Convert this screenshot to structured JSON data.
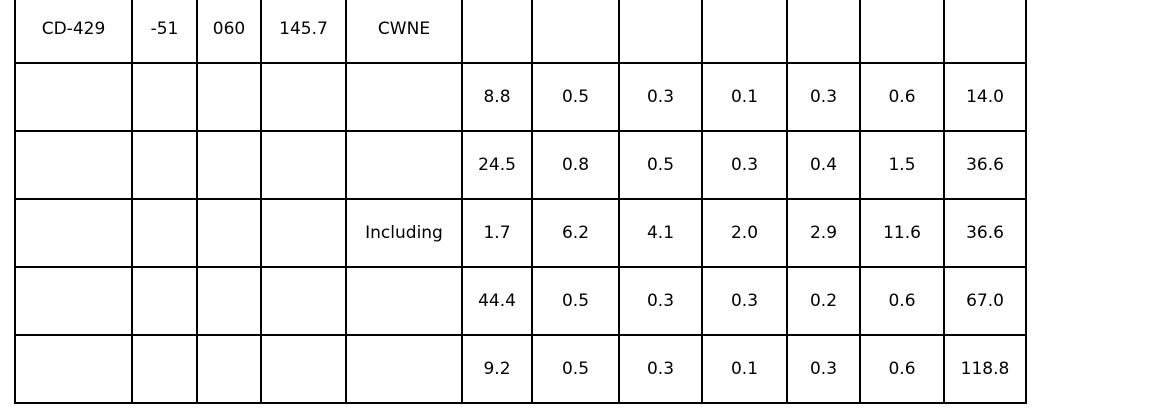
{
  "table": {
    "description_label": "drill-hole-intervals-table",
    "text_color": "#000000",
    "border_color": "#000000",
    "background_color": "#ffffff",
    "rows": [
      [
        "CD-429",
        "-51",
        "060",
        "145.7",
        "CWNE",
        "",
        "",
        "",
        "",
        "",
        "",
        ""
      ],
      [
        "",
        "",
        "",
        "",
        "",
        "8.8",
        "0.5",
        "0.3",
        "0.1",
        "0.3",
        "0.6",
        "14.0"
      ],
      [
        "",
        "",
        "",
        "",
        "",
        "24.5",
        "0.8",
        "0.5",
        "0.3",
        "0.4",
        "1.5",
        "36.6"
      ],
      [
        "",
        "",
        "",
        "",
        "Including",
        "1.7",
        "6.2",
        "4.1",
        "2.0",
        "2.9",
        "11.6",
        "36.6"
      ],
      [
        "",
        "",
        "",
        "",
        "",
        "44.4",
        "0.5",
        "0.3",
        "0.3",
        "0.2",
        "0.6",
        "67.0"
      ],
      [
        "",
        "",
        "",
        "",
        "",
        "9.2",
        "0.5",
        "0.3",
        "0.1",
        "0.3",
        "0.6",
        "118.8"
      ]
    ]
  }
}
